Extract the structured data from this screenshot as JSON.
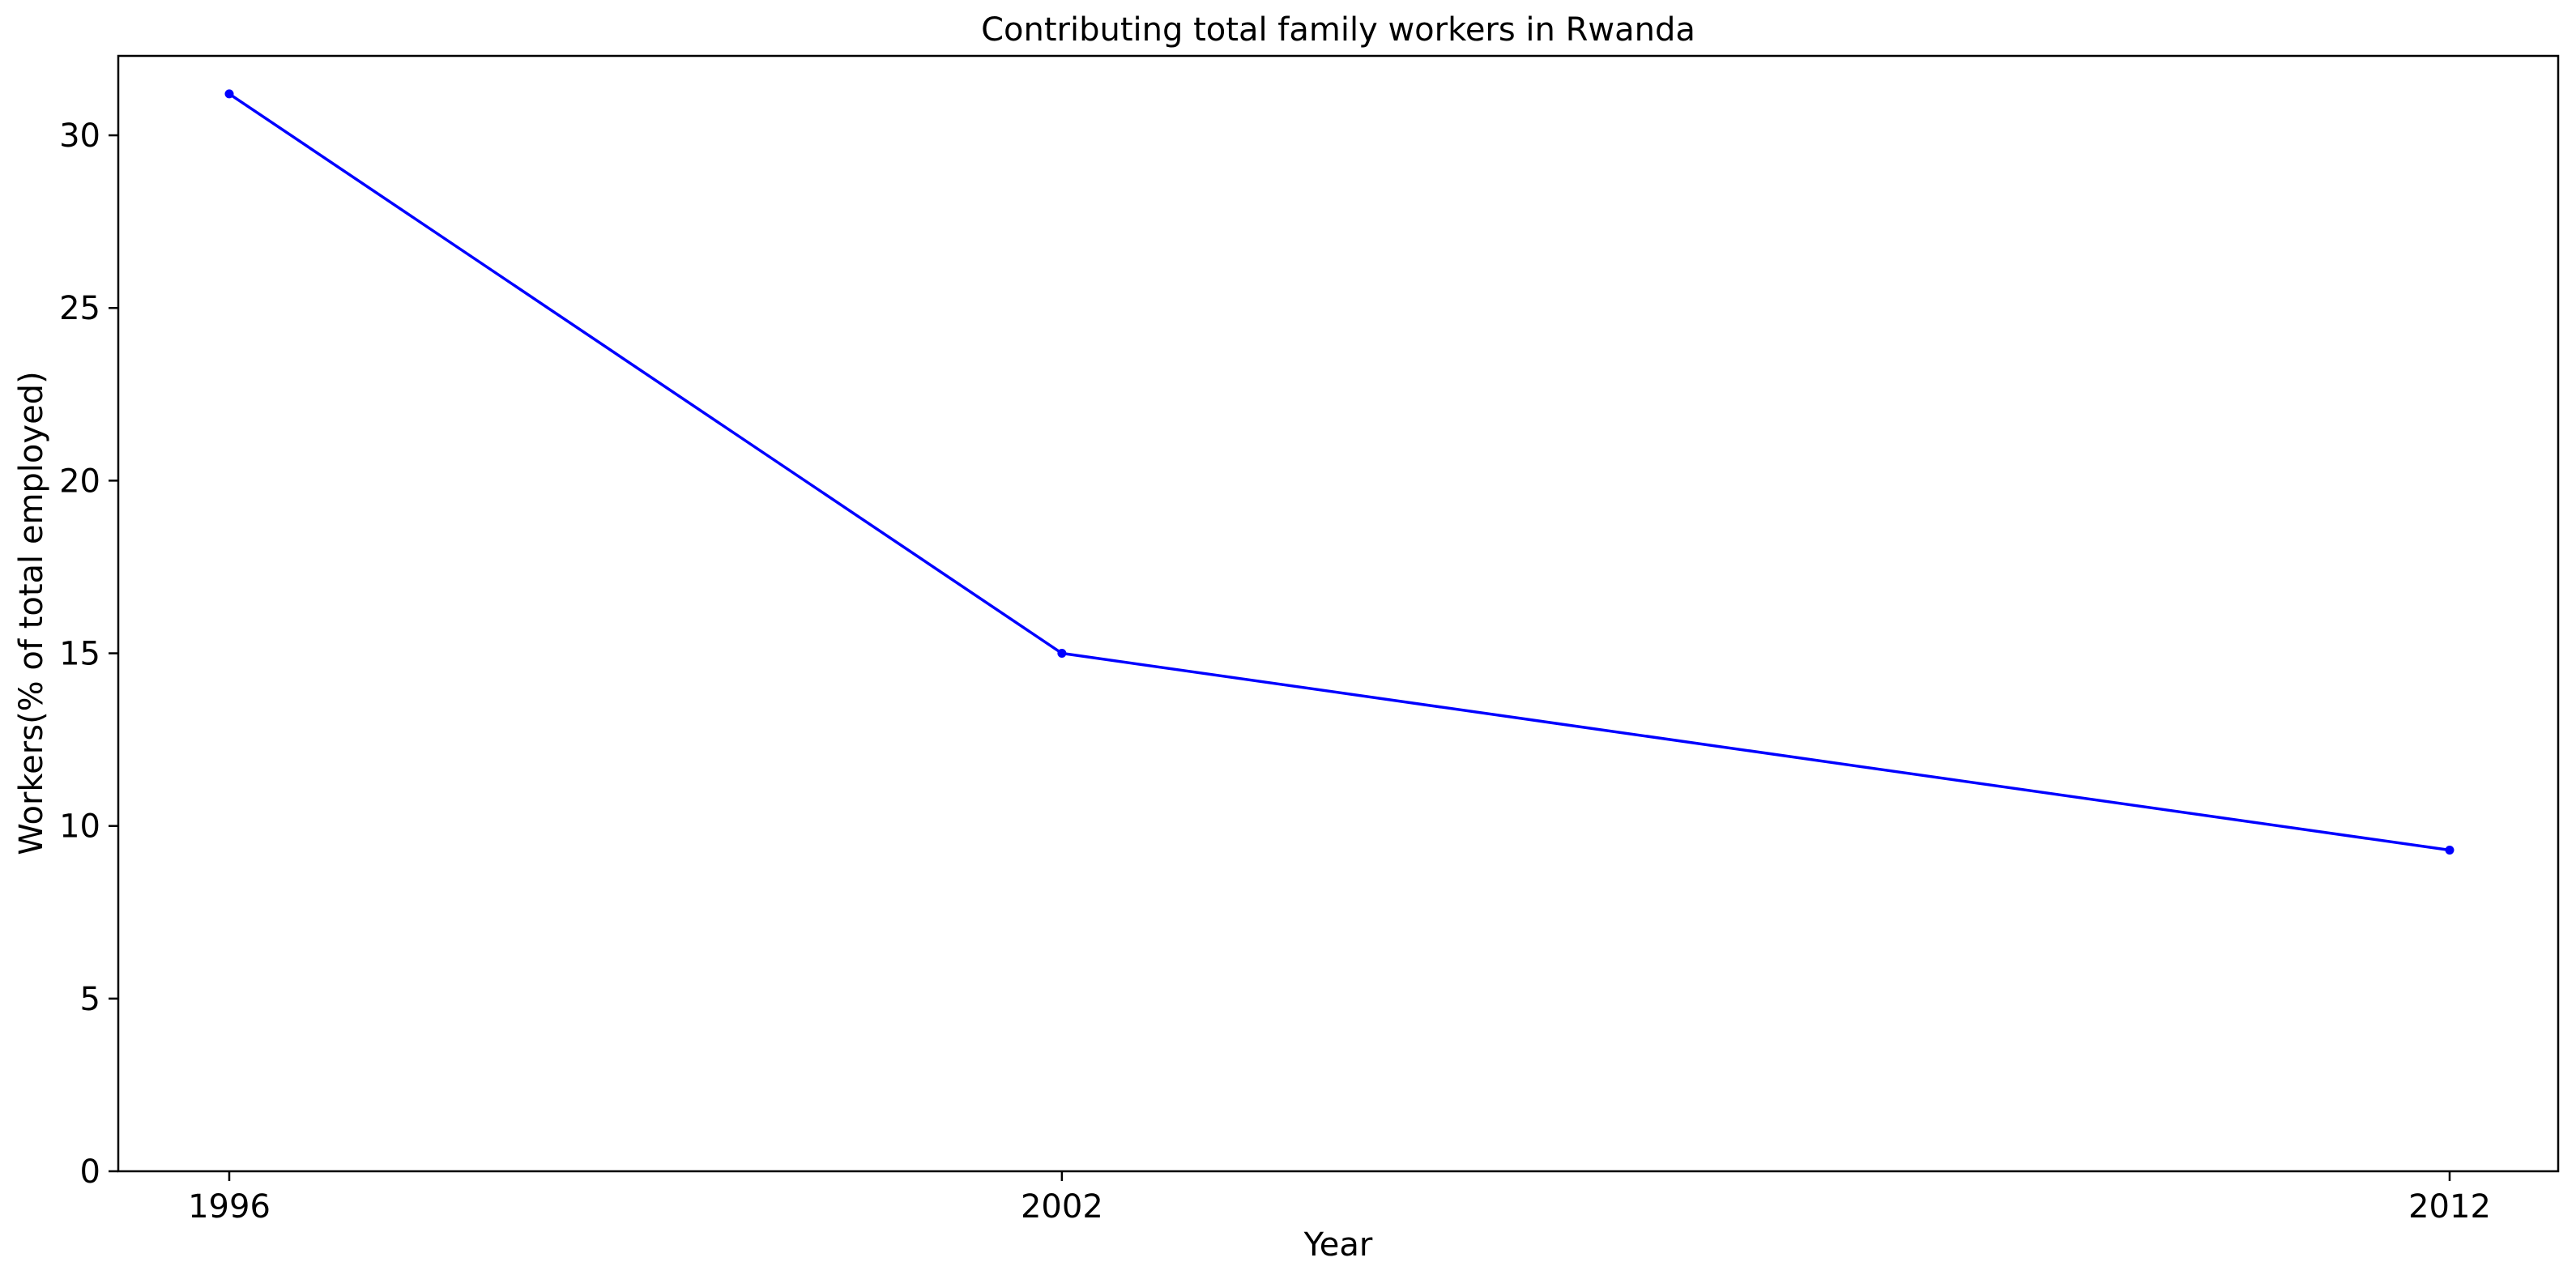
{
  "chart_data": {
    "type": "line",
    "title": "Contributing total family workers in Rwanda",
    "xlabel": "Year",
    "ylabel": "Workers(% of total employed)",
    "categories": [
      "1996",
      "2002",
      "2012"
    ],
    "series": [
      {
        "values": [
          31.2,
          15.0,
          9.3
        ],
        "color": "#0000ff",
        "marker": "circle"
      }
    ],
    "ylim": [
      0,
      32.3
    ],
    "yticks": [
      0,
      5,
      10,
      15,
      20,
      25,
      30
    ],
    "grid": false,
    "legend": "none"
  }
}
